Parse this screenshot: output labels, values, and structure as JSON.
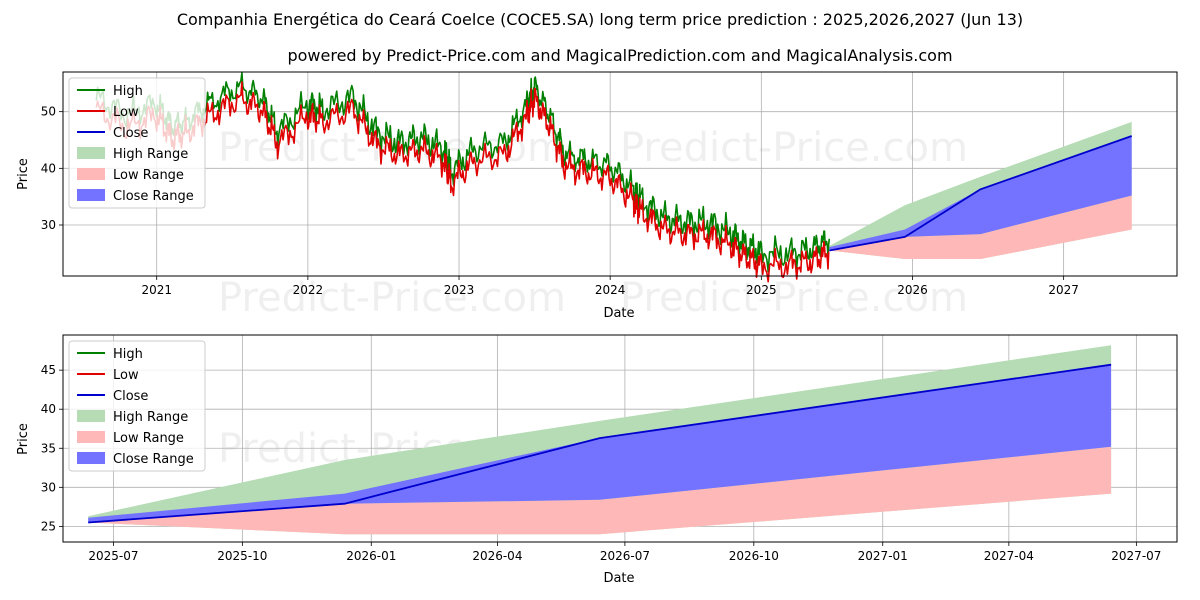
{
  "title": "Companhia Energética do Ceará Coelce (COCE5.SA) long term price prediction : 2025,2026,2027 (Jun 13)",
  "subtitle": "powered by Predict-Price.com and MagicalPrediction.com and MagicalAnalysis.com",
  "watermark": "Predict-Price.com",
  "colors": {
    "high": "#008000",
    "low": "#e00000",
    "close": "#0000cc",
    "high_range": "#b5dcb5",
    "low_range": "#ffb8b8",
    "close_range": "#7373ff",
    "grid": "#b0b0b0"
  },
  "legend": [
    "High",
    "Low",
    "Close",
    "High Range",
    "Low Range",
    "Close Range"
  ],
  "chart_data": [
    {
      "type": "line",
      "xlabel": "Date",
      "ylabel": "Price",
      "xlim": [
        2020.38,
        2027.75
      ],
      "ylim": [
        21,
        57
      ],
      "x_ticks": [
        2021,
        2022,
        2023,
        2024,
        2025,
        2026,
        2027
      ],
      "x_tick_labels": [
        "2021",
        "2022",
        "2023",
        "2024",
        "2025",
        "2026",
        "2027"
      ],
      "y_ticks": [
        30,
        40,
        50
      ],
      "legend_position": "upper left",
      "grid": true,
      "history_anchor": {
        "x": [
          2020.6,
          2020.8,
          2021.0,
          2021.1,
          2021.2,
          2021.35,
          2021.55,
          2021.7,
          2021.8,
          2022.0,
          2022.1,
          2022.3,
          2022.45,
          2022.6,
          2022.75,
          2022.9,
          2022.95,
          2023.1,
          2023.3,
          2023.45,
          2023.5,
          2023.6,
          2023.7,
          2023.85,
          2024.0,
          2024.15,
          2024.2,
          2024.35,
          2024.5,
          2024.65,
          2024.8,
          2024.9,
          2025.0,
          2025.2,
          2025.35,
          2025.45
        ],
        "close": [
          51,
          48,
          50,
          46,
          47,
          50,
          53,
          51,
          45,
          50,
          49,
          51,
          45,
          43,
          44,
          42,
          38,
          42,
          43,
          50,
          53,
          48,
          41,
          40,
          39,
          35,
          33,
          30,
          29,
          29,
          27,
          25,
          23.5,
          23.5,
          24.5,
          26
        ],
        "high_offset": 1.6,
        "low_offset": 1.5
      },
      "forecast": {
        "x": [
          2025.45,
          2025.95,
          2026.45,
          2027.45
        ],
        "close": [
          25.5,
          27.9,
          36.3,
          45.7
        ],
        "high_range_top": [
          26.3,
          33.5,
          38.5,
          48.2
        ],
        "low_range_bottom": [
          25.5,
          24.0,
          24.0,
          29.2
        ],
        "close_range_top": [
          26.1,
          29.2,
          36.3,
          45.7
        ],
        "close_range_bottom": [
          25.5,
          27.9,
          28.4,
          35.2
        ]
      }
    },
    {
      "type": "line",
      "xlabel": "Date",
      "ylabel": "Price",
      "xlim": [
        "2025-05-26",
        "2027-07-30"
      ],
      "ylim": [
        23,
        49.5
      ],
      "x_ticks": [
        "2025-07-01",
        "2025-10-01",
        "2026-01-01",
        "2026-04-01",
        "2026-07-01",
        "2026-10-01",
        "2027-01-01",
        "2027-04-01",
        "2027-07-01"
      ],
      "x_tick_labels": [
        "2025-07",
        "2025-10",
        "2026-01",
        "2026-04",
        "2026-07",
        "2026-10",
        "2027-01",
        "2027-04",
        "2027-07"
      ],
      "y_ticks": [
        25,
        30,
        35,
        40,
        45
      ],
      "legend_position": "upper left",
      "grid": true,
      "forecast": {
        "x": [
          "2025-06-13",
          "2025-12-13",
          "2026-06-13",
          "2027-06-13"
        ],
        "close": [
          25.5,
          27.9,
          36.3,
          45.7
        ],
        "high_range_top": [
          26.3,
          33.5,
          38.5,
          48.2
        ],
        "low_range_bottom": [
          25.5,
          24.0,
          24.0,
          29.2
        ],
        "close_range_top": [
          26.1,
          29.2,
          36.3,
          45.7
        ],
        "close_range_bottom": [
          25.5,
          27.9,
          28.4,
          35.2
        ]
      }
    }
  ]
}
